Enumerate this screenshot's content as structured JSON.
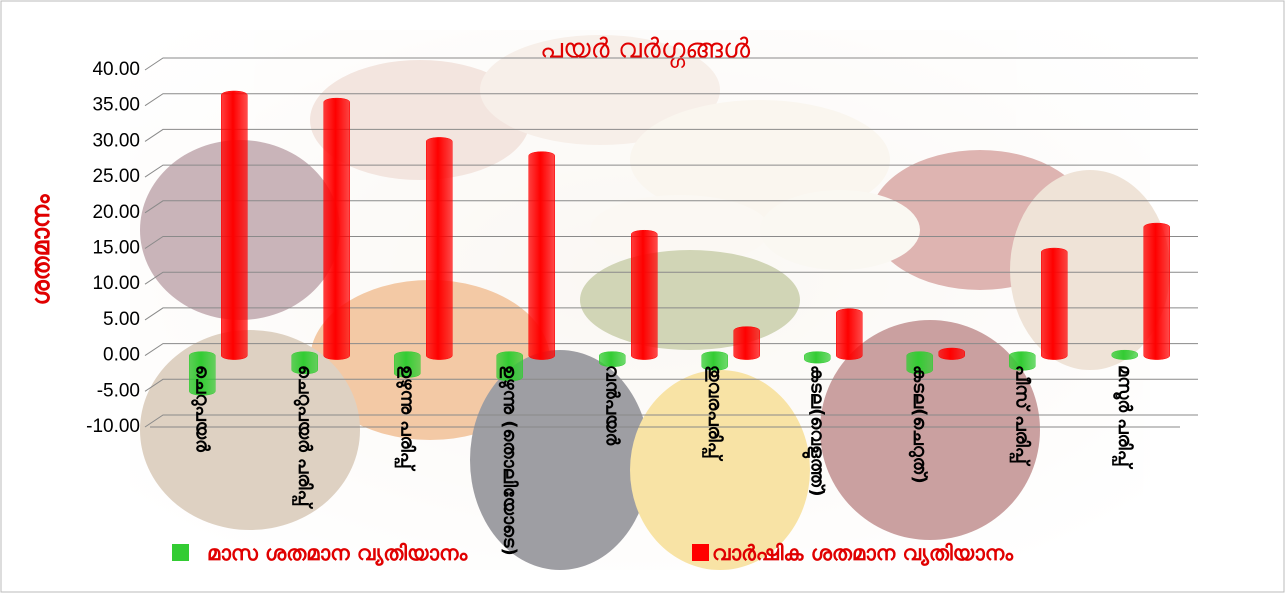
{
  "chart_data": {
    "type": "bar",
    "title": "പയർ വർഗ്ഗങ്ങൾ",
    "y_label": "ശതമാനം",
    "categories": [
      "ചെറുപയർ",
      "ചെറുപയർ പരിപ്പ്",
      "ഉഴുന്നു പരിപ്പ്",
      "ഉഴുന്നു (തൊലിയോടെ)",
      "വൻപയർ",
      "തുവരപരിപ്പ്",
      "കടല(വെളുത്ത്)",
      "കടല(ചെറുത്)",
      "പീസ് പരിപ്പ്",
      "മസൂർ പരിപ്പ്"
    ],
    "series": [
      {
        "name": "മാസ ശതമാന വ്യതിയാനം",
        "color": "#33cc33",
        "values": [
          -5,
          -2,
          -2.5,
          -3,
          -1,
          -1.5,
          -0.5,
          -2,
          -1.5,
          0.2
        ]
      },
      {
        "name": "വാർഷിക ശതമാന വ്യതിയാനം",
        "color": "#ff0000",
        "values": [
          36.5,
          35.5,
          30,
          28,
          17,
          3.5,
          6,
          0.5,
          14.5,
          18
        ]
      }
    ],
    "ylim": [
      -10,
      40
    ],
    "yticks": [
      {
        "value": -10,
        "label": "-10.00"
      },
      {
        "value": -5,
        "label": "-5.00"
      },
      {
        "value": 0,
        "label": "0.00"
      },
      {
        "value": 5,
        "label": "5.00"
      },
      {
        "value": 10,
        "label": "10.00"
      },
      {
        "value": 15,
        "label": "15.00"
      },
      {
        "value": 20,
        "label": "20.00"
      },
      {
        "value": 25,
        "label": "25.00"
      },
      {
        "value": 30,
        "label": "30.00"
      },
      {
        "value": 35,
        "label": "35.00"
      },
      {
        "value": 40,
        "label": "40.00"
      }
    ],
    "grid": true,
    "legend": "bottom"
  }
}
